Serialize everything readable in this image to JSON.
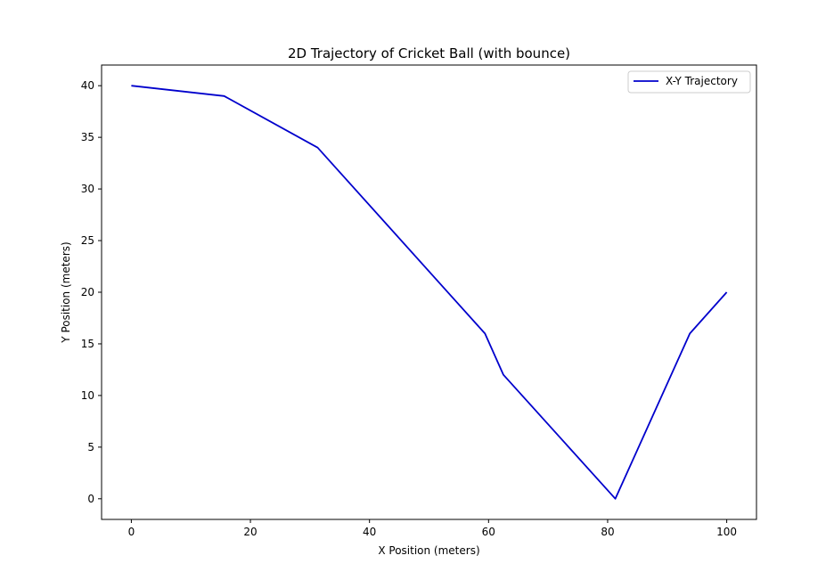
{
  "chart_data": {
    "type": "line",
    "title": "2D Trajectory of Cricket Ball (with bounce)",
    "xlabel": "X Position (meters)",
    "ylabel": "Y Position (meters)",
    "xlim": [
      -5,
      105
    ],
    "ylim": [
      -2,
      42
    ],
    "xticks": [
      0,
      20,
      40,
      60,
      80,
      100
    ],
    "yticks": [
      0,
      5,
      10,
      15,
      20,
      25,
      30,
      35,
      40
    ],
    "grid": false,
    "legend_position": "top-right",
    "series": [
      {
        "name": "X-Y Trajectory",
        "color": "#0000cc",
        "x": [
          0,
          15.6,
          31.3,
          59.4,
          62.5,
          81.3,
          93.8,
          100
        ],
        "y": [
          40,
          39,
          34,
          16,
          12,
          0,
          16,
          20
        ]
      }
    ]
  }
}
